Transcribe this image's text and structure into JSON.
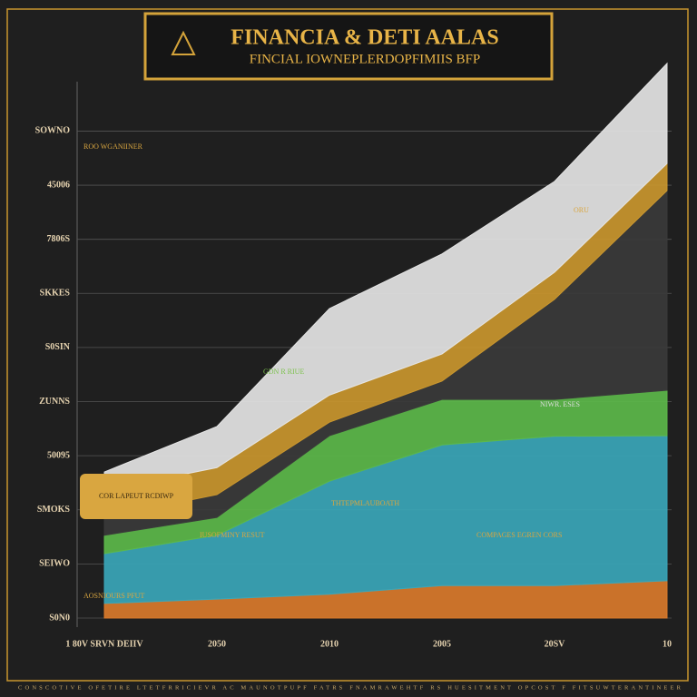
{
  "chart_data": {
    "type": "stacked-area",
    "title": "FINANCIA & DETI AALAS",
    "subtitle": "FINCIAL IOWNEPLERDOPFIMIIS BFP",
    "categories": [
      "1 80V SRVN DEIIV",
      "2050",
      "2010",
      "2005",
      "20SV",
      "10"
    ],
    "series": [
      {
        "color": "#d9792b",
        "values": [
          0.27,
          0.35,
          0.44,
          0.6,
          0.6,
          0.69
        ]
      },
      {
        "color": "#3aa6b9",
        "values": [
          0.92,
          1.18,
          2.09,
          2.6,
          2.76,
          2.68
        ]
      },
      {
        "color": "#5cb84a",
        "values": [
          0.34,
          0.33,
          0.84,
          0.84,
          0.68,
          0.84
        ]
      },
      {
        "color": "#3a3a3a",
        "values": [
          0.33,
          0.42,
          0.25,
          0.34,
          1.85,
          3.69
        ]
      },
      {
        "color": "#c9962e",
        "values": [
          0.5,
          0.5,
          0.5,
          0.5,
          0.5,
          0.5
        ]
      },
      {
        "color": "#e4e4e4",
        "values": [
          0.34,
          0.76,
          1.6,
          1.85,
          1.68,
          1.85
        ]
      }
    ],
    "ylim": [
      0,
      10.5
    ],
    "yticks": [
      {
        "value": 0,
        "label": "S0N0"
      },
      {
        "value": 1,
        "label": "SEIWO"
      },
      {
        "value": 2,
        "label": "SMOKS"
      },
      {
        "value": 3,
        "label": "50095"
      },
      {
        "value": 4,
        "label": "ZUNNS"
      },
      {
        "value": 5,
        "label": "S0SIN"
      },
      {
        "value": 6,
        "label": "SKKES"
      },
      {
        "value": 7,
        "label": "7806S"
      },
      {
        "value": 8,
        "label": "45006"
      },
      {
        "value": 9,
        "label": "SOWNO"
      }
    ],
    "grid": true,
    "annotations": [
      "ROO WGANIINER",
      "GDN R RIUE",
      "NIWR. ESES",
      "THTEPMLAUBOATH",
      "IUSOFMINY RESUT",
      "COMPAGES EGREN CORS",
      "ORU",
      "COR LAPEUT RCDIWP",
      "AOSNIOURS PFUT"
    ],
    "footer": "CONSCOTIVE OFETIRE LTETFRRICIEVR AC MAUNOTPUPF FATRS FNAMRAWEHTF RS HUESITMENT OPCOST F FITSUWTERANTINEER"
  }
}
